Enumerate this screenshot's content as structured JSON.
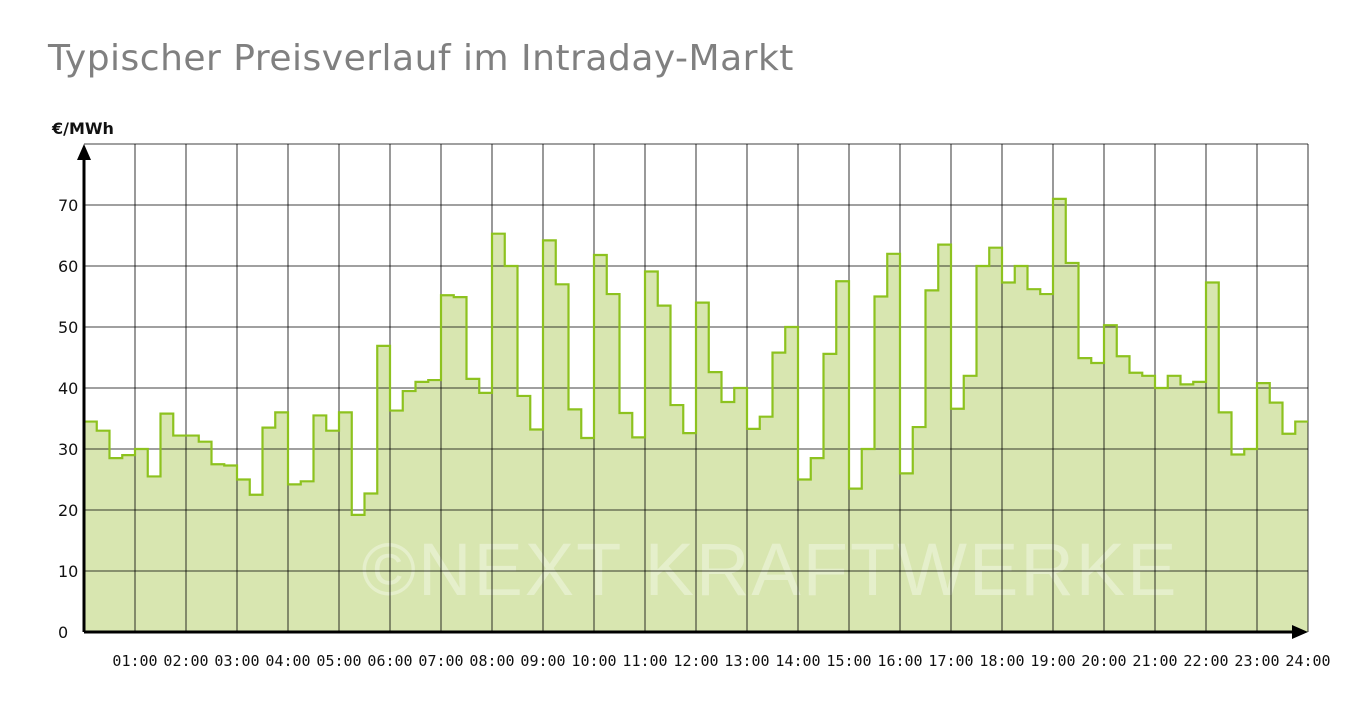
{
  "title": "Typischer Preisverlauf im Intraday-Markt",
  "watermark": "©NEXT KRAFTWERKE",
  "colors": {
    "line": "#8dc21f",
    "fill": "#d8e6b0",
    "grid": "#000000",
    "axis": "#000000",
    "title": "#808080"
  },
  "chart_data": {
    "type": "area",
    "title": "Typischer Preisverlauf im Intraday-Markt",
    "xlabel": "",
    "ylabel": "€/MWh",
    "ylim": [
      0,
      80
    ],
    "xlim": [
      0,
      24
    ],
    "step": "quarter-hour",
    "grid": true,
    "yticks": [
      0,
      10,
      20,
      30,
      40,
      50,
      60,
      70
    ],
    "xtick_labels": [
      "01:00",
      "02:00",
      "03:00",
      "04:00",
      "05:00",
      "06:00",
      "07:00",
      "08:00",
      "09:00",
      "10:00",
      "11:00",
      "12:00",
      "13:00",
      "14:00",
      "15:00",
      "16:00",
      "17:00",
      "18:00",
      "19:00",
      "20:00",
      "21:00",
      "22:00",
      "23:00",
      "24:00"
    ],
    "values": [
      34.5,
      33,
      28.5,
      29,
      30,
      25.5,
      35.8,
      32.2,
      32.2,
      31.2,
      27.5,
      27.3,
      25,
      22.5,
      33.5,
      36,
      24.2,
      24.7,
      35.5,
      33,
      36,
      19.2,
      22.7,
      46.9,
      36.3,
      39.5,
      41,
      41.3,
      55.2,
      54.9,
      41.5,
      39.2,
      65.3,
      60,
      38.7,
      33.2,
      64.2,
      57,
      36.5,
      31.8,
      61.8,
      55.4,
      35.9,
      31.9,
      59.1,
      53.5,
      37.2,
      32.6,
      54,
      42.6,
      37.7,
      40,
      33.3,
      35.3,
      45.8,
      50,
      25,
      28.5,
      45.6,
      57.5,
      23.5,
      30,
      55,
      62,
      26,
      33.6,
      56,
      63.5,
      36.6,
      42,
      60,
      63,
      57.3,
      60,
      56.2,
      55.4,
      71,
      60.5,
      44.9,
      44.1,
      50.3,
      45.2,
      42.5,
      42,
      40,
      42,
      40.6,
      41,
      57.3,
      36,
      29.1,
      30,
      40.8,
      37.6,
      32.5,
      34.5
    ]
  }
}
